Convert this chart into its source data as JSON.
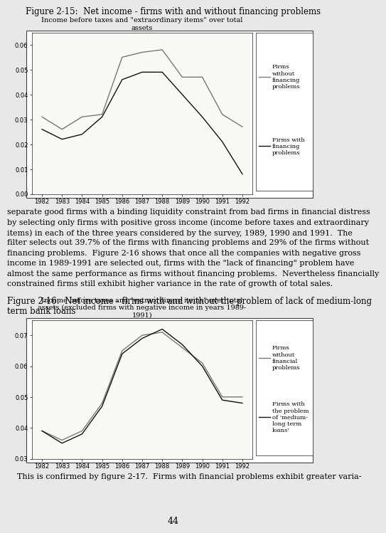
{
  "fig_title": "Figure 2-15:  Net income - firms with and without financing problems",
  "fig_title_fontsize": 8.5,
  "background_color": "#e8e8e8",
  "chart_bg": "#f8f8f4",
  "years": [
    1982,
    1983,
    1984,
    1985,
    1986,
    1987,
    1988,
    1989,
    1990,
    1991,
    1992
  ],
  "chart1": {
    "title": "Income before taxes and \"extraordinary items\" over total\nassets",
    "title_fontsize": 7.0,
    "without_financing": [
      0.031,
      0.026,
      0.031,
      0.032,
      0.055,
      0.057,
      0.058,
      0.047,
      0.047,
      0.032,
      0.027
    ],
    "with_financing": [
      0.026,
      0.022,
      0.024,
      0.031,
      0.046,
      0.049,
      0.049,
      0.04,
      0.031,
      0.021,
      0.008
    ],
    "ylim": [
      0,
      0.065
    ],
    "yticks": [
      0,
      0.01,
      0.02,
      0.03,
      0.04,
      0.05,
      0.06
    ],
    "legend1_label": "Firms\nwithout\nfinancing\nproblems",
    "legend2_label": "Firms with\nfinancing\nproblems",
    "line_without_color": "#777777",
    "line_with_color": "#111111"
  },
  "text_paragraphs": [
    "separate good firms with a binding liquidity constraint from bad firms in financial distress",
    "by selecting only firms with positive gross income (income before taxes and extraordinary",
    "items) in each of the three years considered by the survey, 1989, 1990 and 1991.  The",
    "filter selects out 39.7% of the firms with financing problems and 29% of the firms without",
    "financing problems.  Figure 2-16 shows that once all the companies with negative gross",
    "income in 1989-1991 are selected out, firms with the \"lack of financing\" problem have",
    "almost the same performance as firms without financing problems.  Nevertheless financially",
    "constrained firms still exhibit higher variance in the rate of growth of total sales."
  ],
  "fig2_caption_line1": "Figure 2-16:  Net income - firms with and without the problem of lack of medium-long",
  "fig2_caption_line2": "term bank loans",
  "fig2_caption_fontsize": 8.5,
  "chart2": {
    "title": "Income before taxes and \"extraordinary items\" over total\nassets (excluded firms with negative income in years 1989-\n1991)",
    "title_fontsize": 7.0,
    "without_financing": [
      0.039,
      0.036,
      0.039,
      0.048,
      0.065,
      0.07,
      0.071,
      0.066,
      0.061,
      0.05,
      0.05
    ],
    "with_financing": [
      0.039,
      0.035,
      0.038,
      0.047,
      0.064,
      0.069,
      0.072,
      0.067,
      0.06,
      0.049,
      0.048
    ],
    "ylim": [
      0.03,
      0.075
    ],
    "yticks": [
      0.03,
      0.04,
      0.05,
      0.06,
      0.07
    ],
    "legend1_label": "Firms\nwithout\nfinancial\nproblems",
    "legend2_label": "Firms with\nthe problem\nof 'medium-\nlong term\nloans'",
    "line_without_color": "#777777",
    "line_with_color": "#111111"
  },
  "bottom_text": "    This is confirmed by figure 2-17.  Firms with financial problems exhibit greater varia-",
  "page_number": "44",
  "text_fontsize": 8.0,
  "page_num_fontsize": 9.0
}
